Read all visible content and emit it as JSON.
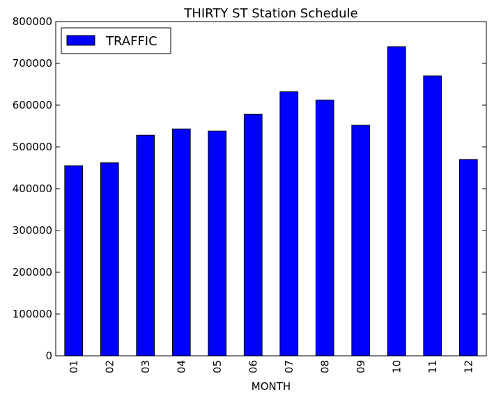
{
  "chart_data": {
    "type": "bar",
    "title": "THIRTY ST Station Schedule",
    "xlabel": "MONTH",
    "ylabel": "",
    "categories": [
      "01",
      "02",
      "03",
      "04",
      "05",
      "06",
      "07",
      "08",
      "09",
      "10",
      "11",
      "12"
    ],
    "series": [
      {
        "name": "TRAFFIC",
        "color": "#0000ff",
        "values": [
          455000,
          462000,
          528000,
          543000,
          538000,
          578000,
          632000,
          612000,
          552000,
          740000,
          670000,
          470000
        ]
      }
    ],
    "ylim": [
      0,
      800000
    ],
    "yticks": [
      "0",
      "100000",
      "200000",
      "300000",
      "400000",
      "500000",
      "600000",
      "700000",
      "800000"
    ],
    "grid": false,
    "legend": "top-left"
  }
}
